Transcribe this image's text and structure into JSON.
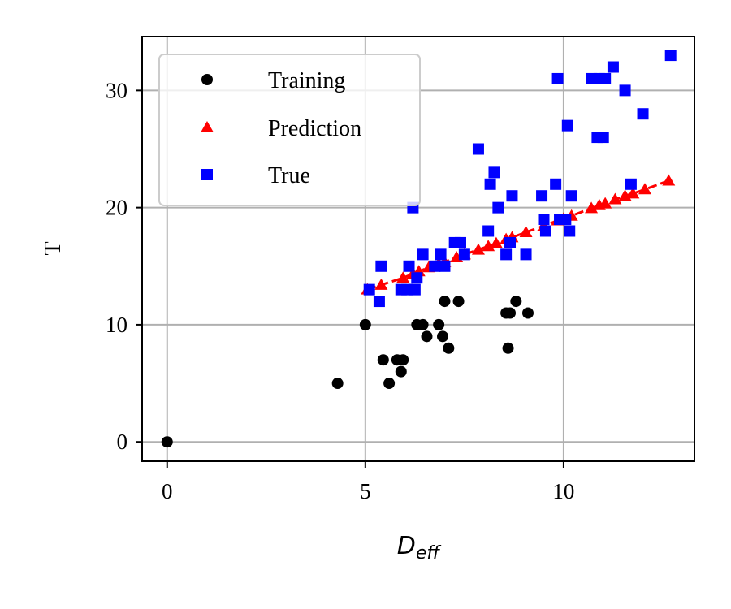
{
  "chart_data": {
    "type": "scatter",
    "title": "",
    "xlabel": {
      "main": "D",
      "sub": "eff"
    },
    "ylabel": "T",
    "xlim": [
      -0.63,
      13.3
    ],
    "ylim": [
      -1.65,
      34.6
    ],
    "xticks": [
      0,
      5,
      10
    ],
    "yticks": [
      0,
      10,
      20,
      30
    ],
    "xtick_labels": [
      "0",
      "5",
      "10"
    ],
    "ytick_labels": [
      "0",
      "10",
      "20",
      "30"
    ],
    "grid": true,
    "legend": {
      "position": "top-left"
    },
    "series": [
      {
        "name": "Training",
        "marker": "circle",
        "color": "#000000",
        "points": [
          [
            0,
            0
          ],
          [
            4.3,
            5
          ],
          [
            5.0,
            10
          ],
          [
            5.45,
            7
          ],
          [
            5.6,
            5
          ],
          [
            5.8,
            7
          ],
          [
            5.9,
            6
          ],
          [
            5.95,
            7
          ],
          [
            6.3,
            10
          ],
          [
            6.45,
            10
          ],
          [
            6.55,
            9
          ],
          [
            6.85,
            10
          ],
          [
            6.95,
            9
          ],
          [
            7.0,
            12
          ],
          [
            7.1,
            8
          ],
          [
            7.35,
            12
          ],
          [
            8.55,
            11
          ],
          [
            8.6,
            8
          ],
          [
            8.65,
            11
          ],
          [
            8.8,
            12
          ],
          [
            9.1,
            11
          ]
        ]
      },
      {
        "name": "Prediction",
        "marker": "triangle",
        "color": "#ff0000",
        "line": "dashed",
        "points": [
          [
            5.05,
            13.0
          ],
          [
            5.4,
            13.4
          ],
          [
            5.95,
            14.0
          ],
          [
            6.2,
            14.35
          ],
          [
            6.35,
            14.55
          ],
          [
            6.6,
            14.9
          ],
          [
            6.85,
            15.2
          ],
          [
            7.0,
            15.35
          ],
          [
            7.3,
            15.75
          ],
          [
            7.5,
            16.0
          ],
          [
            7.85,
            16.4
          ],
          [
            8.1,
            16.7
          ],
          [
            8.3,
            16.95
          ],
          [
            8.55,
            17.3
          ],
          [
            8.7,
            17.45
          ],
          [
            9.05,
            17.9
          ],
          [
            9.5,
            18.45
          ],
          [
            9.85,
            18.9
          ],
          [
            10.0,
            19.05
          ],
          [
            10.2,
            19.3
          ],
          [
            10.7,
            19.95
          ],
          [
            10.9,
            20.2
          ],
          [
            11.05,
            20.35
          ],
          [
            11.3,
            20.7
          ],
          [
            11.55,
            21.0
          ],
          [
            11.75,
            21.2
          ],
          [
            12.05,
            21.55
          ],
          [
            12.65,
            22.3
          ]
        ]
      },
      {
        "name": "True",
        "marker": "square",
        "color": "#0000ff",
        "points": [
          [
            5.1,
            13
          ],
          [
            5.35,
            12
          ],
          [
            5.4,
            15
          ],
          [
            5.9,
            13
          ],
          [
            6.05,
            13
          ],
          [
            6.1,
            15
          ],
          [
            6.2,
            20
          ],
          [
            6.25,
            13
          ],
          [
            6.3,
            14
          ],
          [
            6.45,
            16
          ],
          [
            6.75,
            15
          ],
          [
            6.9,
            16
          ],
          [
            7.0,
            15
          ],
          [
            7.25,
            17
          ],
          [
            7.4,
            17
          ],
          [
            7.5,
            16
          ],
          [
            7.85,
            25
          ],
          [
            8.1,
            18
          ],
          [
            8.15,
            22
          ],
          [
            8.25,
            23
          ],
          [
            8.35,
            20
          ],
          [
            8.55,
            16
          ],
          [
            8.65,
            17
          ],
          [
            8.7,
            21
          ],
          [
            9.05,
            16
          ],
          [
            9.45,
            21
          ],
          [
            9.5,
            19
          ],
          [
            9.55,
            18
          ],
          [
            9.8,
            22
          ],
          [
            9.85,
            31
          ],
          [
            9.9,
            19
          ],
          [
            10.05,
            19
          ],
          [
            10.1,
            27
          ],
          [
            10.15,
            18
          ],
          [
            10.2,
            21
          ],
          [
            10.7,
            31
          ],
          [
            10.85,
            26
          ],
          [
            10.9,
            31
          ],
          [
            11.0,
            26
          ],
          [
            11.05,
            31
          ],
          [
            11.25,
            32
          ],
          [
            11.55,
            30
          ],
          [
            11.7,
            22
          ],
          [
            12.0,
            28
          ],
          [
            12.7,
            33
          ]
        ]
      }
    ]
  }
}
